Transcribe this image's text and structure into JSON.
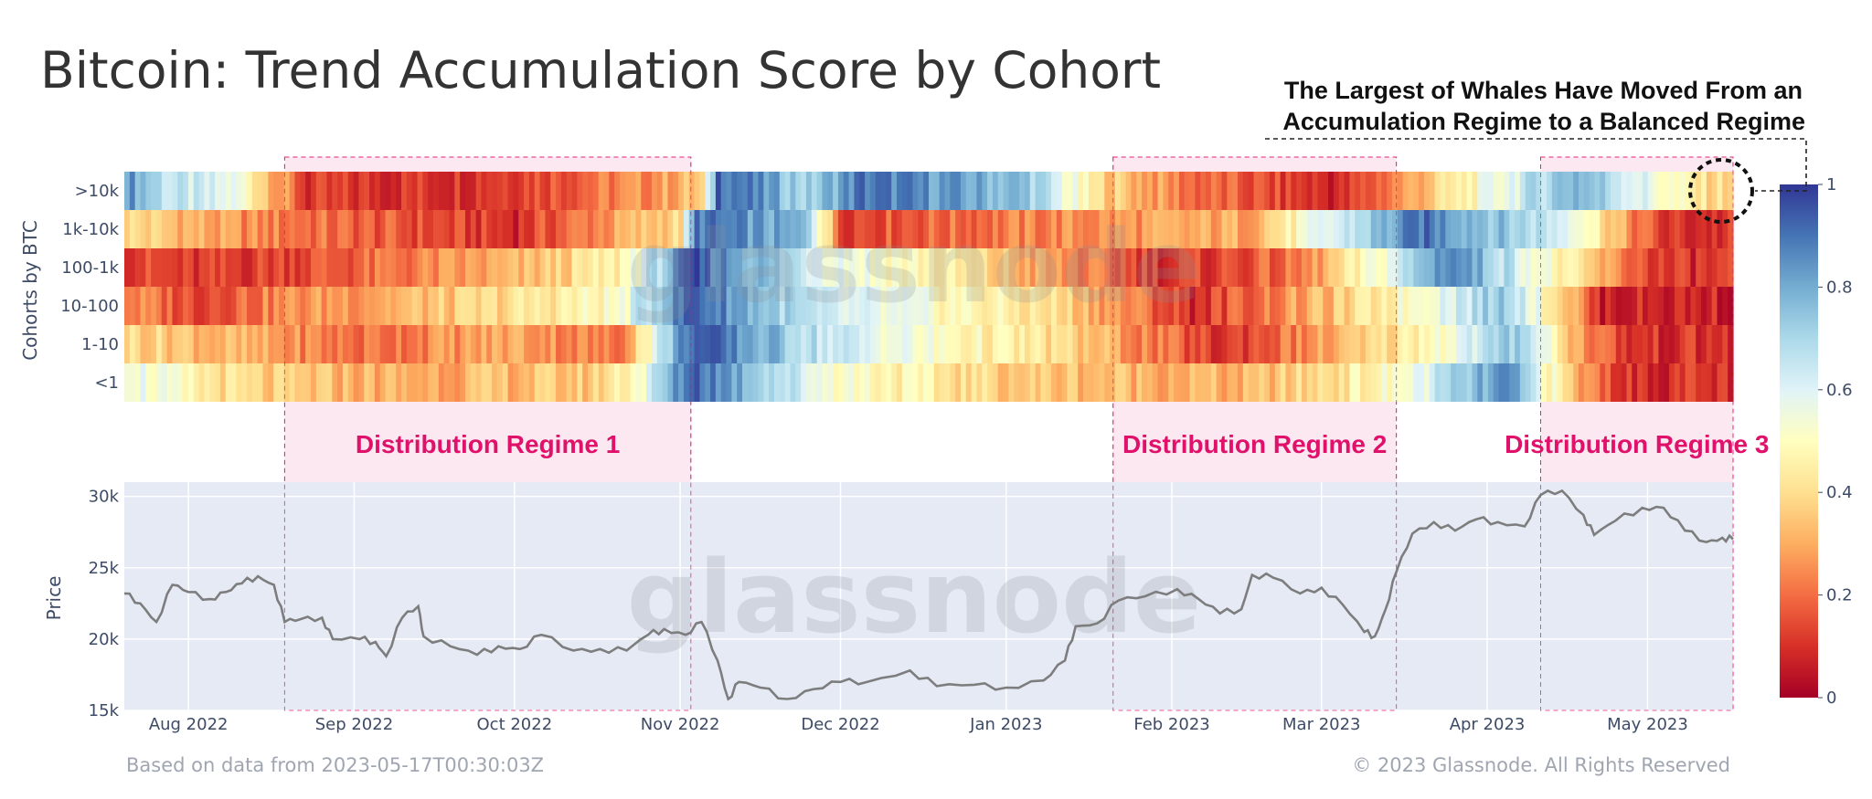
{
  "title": "Bitcoin: Trend Accumulation Score by Cohort",
  "annotation": {
    "line1": "The Largest of Whales Have Moved From an",
    "line2": "Accumulation Regime to a Balanced Regime"
  },
  "watermark": "glassnode",
  "footer": {
    "left": "Based on data from 2023-05-17T00:30:03Z",
    "right": "© 2023 Glassnode. All Rights Reserved"
  },
  "colors": {
    "regime_fill": "#f7c9dc",
    "regime_text": "#e0116b",
    "price_bg": "#e5eaf5",
    "price_line": "#7d7d7d"
  },
  "chart_data": [
    {
      "type": "heatmap",
      "title": "Bitcoin: Trend Accumulation Score by Cohort",
      "ylabel": "Cohorts by BTC",
      "x_range": [
        "2022-07-20",
        "2023-05-17"
      ],
      "rows": [
        {
          "label": ">10k",
          "segments": [
            [
              "2022-07-20",
              0.85
            ],
            [
              "2022-07-28",
              0.65
            ],
            [
              "2022-08-10",
              0.55
            ],
            [
              "2022-08-23",
              0.1
            ],
            [
              "2022-09-20",
              0.12
            ],
            [
              "2022-10-10",
              0.18
            ],
            [
              "2022-10-25",
              0.25
            ],
            [
              "2022-11-05",
              0.35
            ],
            [
              "2022-11-08",
              0.95
            ],
            [
              "2022-11-25",
              0.7
            ],
            [
              "2022-12-05",
              0.9
            ],
            [
              "2023-01-05",
              0.75
            ],
            [
              "2023-01-18",
              0.4
            ],
            [
              "2023-02-05",
              0.2
            ],
            [
              "2023-03-05",
              0.08
            ],
            [
              "2023-04-18",
              0.8
            ],
            [
              "2023-05-12",
              0.4
            ]
          ]
        },
        {
          "label": "1k-10k",
          "segments": [
            [
              "2022-07-20",
              0.4
            ],
            [
              "2022-08-10",
              0.25
            ],
            [
              "2022-09-01",
              0.18
            ],
            [
              "2022-10-01",
              0.1
            ],
            [
              "2022-11-01",
              0.4
            ],
            [
              "2022-11-04",
              0.9
            ],
            [
              "2022-11-25",
              0.75
            ],
            [
              "2022-12-01",
              0.15
            ],
            [
              "2023-01-15",
              0.25
            ],
            [
              "2023-02-15",
              0.3
            ],
            [
              "2023-03-20",
              0.9
            ],
            [
              "2023-04-18",
              0.6
            ],
            [
              "2023-04-28",
              0.25
            ],
            [
              "2023-05-05",
              0.1
            ]
          ]
        },
        {
          "label": "100-1k",
          "segments": [
            [
              "2022-07-20",
              0.15
            ],
            [
              "2022-08-01",
              0.1
            ],
            [
              "2022-09-01",
              0.18
            ],
            [
              "2022-10-01",
              0.3
            ],
            [
              "2022-10-20",
              0.45
            ],
            [
              "2022-10-28",
              0.7
            ],
            [
              "2022-11-03",
              0.95
            ],
            [
              "2022-11-28",
              0.6
            ],
            [
              "2022-12-20",
              0.45
            ],
            [
              "2023-01-05",
              0.3
            ],
            [
              "2023-02-01",
              0.1
            ],
            [
              "2023-02-25",
              0.2
            ],
            [
              "2023-03-15",
              0.6
            ],
            [
              "2023-03-25",
              0.9
            ],
            [
              "2023-04-18",
              0.4
            ],
            [
              "2023-04-25",
              0.25
            ],
            [
              "2023-05-05",
              0.1
            ]
          ]
        },
        {
          "label": "10-100",
          "segments": [
            [
              "2022-07-20",
              0.25
            ],
            [
              "2022-08-01",
              0.15
            ],
            [
              "2022-08-20",
              0.25
            ],
            [
              "2022-09-20",
              0.35
            ],
            [
              "2022-10-20",
              0.5
            ],
            [
              "2022-11-03",
              0.95
            ],
            [
              "2022-11-28",
              0.6
            ],
            [
              "2022-12-20",
              0.5
            ],
            [
              "2023-01-10",
              0.4
            ],
            [
              "2023-02-05",
              0.1
            ],
            [
              "2023-03-05",
              0.35
            ],
            [
              "2023-03-20",
              0.55
            ],
            [
              "2023-04-05",
              0.75
            ],
            [
              "2023-04-18",
              0.3
            ],
            [
              "2023-04-22",
              0.08
            ]
          ]
        },
        {
          "label": "1-10",
          "segments": [
            [
              "2022-07-20",
              0.4
            ],
            [
              "2022-08-10",
              0.3
            ],
            [
              "2022-09-01",
              0.2
            ],
            [
              "2022-10-01",
              0.3
            ],
            [
              "2022-10-20",
              0.2
            ],
            [
              "2022-11-03",
              0.95
            ],
            [
              "2022-11-28",
              0.65
            ],
            [
              "2022-12-20",
              0.5
            ],
            [
              "2023-01-10",
              0.4
            ],
            [
              "2023-02-10",
              0.1
            ],
            [
              "2023-03-10",
              0.35
            ],
            [
              "2023-03-25",
              0.55
            ],
            [
              "2023-04-08",
              0.75
            ],
            [
              "2023-04-18",
              0.3
            ],
            [
              "2023-04-28",
              0.1
            ]
          ]
        },
        {
          "label": "<1",
          "segments": [
            [
              "2022-07-20",
              0.6
            ],
            [
              "2022-08-01",
              0.45
            ],
            [
              "2022-08-15",
              0.35
            ],
            [
              "2022-09-10",
              0.3
            ],
            [
              "2022-10-15",
              0.35
            ],
            [
              "2022-10-25",
              0.55
            ],
            [
              "2022-11-03",
              0.95
            ],
            [
              "2022-11-28",
              0.55
            ],
            [
              "2022-12-20",
              0.42
            ],
            [
              "2023-01-05",
              0.35
            ],
            [
              "2023-02-15",
              0.3
            ],
            [
              "2023-03-15",
              0.5
            ],
            [
              "2023-04-05",
              0.85
            ],
            [
              "2023-04-18",
              0.3
            ],
            [
              "2023-04-28",
              0.1
            ]
          ]
        }
      ],
      "colorbar": {
        "min": 0,
        "max": 1,
        "ticks": [
          "1",
          "0.8",
          "0.6",
          "0.4",
          "0.2",
          "0"
        ],
        "colors": [
          "#a50026",
          "#d73027",
          "#f46d43",
          "#fdae61",
          "#fee090",
          "#ffffbf",
          "#e0f3f8",
          "#abd9e9",
          "#74add1",
          "#4575b4",
          "#313695"
        ]
      }
    },
    {
      "type": "line",
      "ylabel": "Price",
      "ylim": [
        15000,
        31000
      ],
      "y_ticks": [
        {
          "value": 15000,
          "label": "15k"
        },
        {
          "value": 20000,
          "label": "20k"
        },
        {
          "value": 25000,
          "label": "25k"
        },
        {
          "value": 30000,
          "label": "30k"
        }
      ],
      "x_ticks": [
        {
          "date": "2022-08-01",
          "label": "Aug 2022"
        },
        {
          "date": "2022-09-01",
          "label": "Sep 2022"
        },
        {
          "date": "2022-10-01",
          "label": "Oct 2022"
        },
        {
          "date": "2022-11-01",
          "label": "Nov 2022"
        },
        {
          "date": "2022-12-01",
          "label": "Dec 2022"
        },
        {
          "date": "2023-01-01",
          "label": "Jan 2023"
        },
        {
          "date": "2023-02-01",
          "label": "Feb 2023"
        },
        {
          "date": "2023-03-01",
          "label": "Mar 2023"
        },
        {
          "date": "2023-04-01",
          "label": "Apr 2023"
        },
        {
          "date": "2023-05-01",
          "label": "May 2023"
        }
      ],
      "x_range": [
        "2022-07-20",
        "2023-05-17"
      ],
      "series": [
        {
          "points": [
            [
              "2022-07-20",
              23200
            ],
            [
              "2022-07-23",
              22500
            ],
            [
              "2022-07-26",
              21200
            ],
            [
              "2022-07-29",
              23800
            ],
            [
              "2022-08-01",
              23300
            ],
            [
              "2022-08-05",
              22800
            ],
            [
              "2022-08-08",
              23300
            ],
            [
              "2022-08-11",
              23900
            ],
            [
              "2022-08-14",
              24400
            ],
            [
              "2022-08-17",
              23800
            ],
            [
              "2022-08-19",
              21200
            ],
            [
              "2022-08-22",
              21400
            ],
            [
              "2022-08-26",
              21500
            ],
            [
              "2022-08-28",
              20000
            ],
            [
              "2022-09-02",
              20000
            ],
            [
              "2022-09-05",
              19800
            ],
            [
              "2022-09-07",
              18800
            ],
            [
              "2022-09-10",
              21500
            ],
            [
              "2022-09-13",
              22300
            ],
            [
              "2022-09-14",
              20200
            ],
            [
              "2022-09-19",
              19500
            ],
            [
              "2022-09-24",
              18900
            ],
            [
              "2022-09-28",
              19500
            ],
            [
              "2022-10-02",
              19300
            ],
            [
              "2022-10-06",
              20300
            ],
            [
              "2022-10-12",
              19200
            ],
            [
              "2022-10-17",
              19300
            ],
            [
              "2022-10-22",
              19200
            ],
            [
              "2022-10-26",
              20300
            ],
            [
              "2022-10-29",
              20700
            ],
            [
              "2022-11-02",
              20300
            ],
            [
              "2022-11-05",
              21200
            ],
            [
              "2022-11-08",
              18500
            ],
            [
              "2022-11-10",
              15800
            ],
            [
              "2022-11-12",
              17000
            ],
            [
              "2022-11-16",
              16600
            ],
            [
              "2022-11-21",
              15800
            ],
            [
              "2022-11-26",
              16500
            ],
            [
              "2022-12-01",
              17000
            ],
            [
              "2022-12-06",
              17000
            ],
            [
              "2022-12-14",
              17800
            ],
            [
              "2022-12-19",
              16700
            ],
            [
              "2022-12-26",
              16800
            ],
            [
              "2023-01-01",
              16600
            ],
            [
              "2023-01-08",
              17100
            ],
            [
              "2023-01-12",
              18500
            ],
            [
              "2023-01-14",
              20900
            ],
            [
              "2023-01-18",
              21100
            ],
            [
              "2023-01-22",
              22700
            ],
            [
              "2023-01-27",
              23000
            ],
            [
              "2023-02-02",
              23500
            ],
            [
              "2023-02-06",
              22800
            ],
            [
              "2023-02-10",
              21800
            ],
            [
              "2023-02-14",
              22100
            ],
            [
              "2023-02-16",
              24500
            ],
            [
              "2023-02-20",
              24300
            ],
            [
              "2023-02-25",
              23200
            ],
            [
              "2023-03-01",
              23600
            ],
            [
              "2023-03-05",
              22400
            ],
            [
              "2023-03-09",
              20500
            ],
            [
              "2023-03-11",
              20200
            ],
            [
              "2023-03-13",
              22100
            ],
            [
              "2023-03-15",
              24700
            ],
            [
              "2023-03-18",
              27400
            ],
            [
              "2023-03-22",
              28200
            ],
            [
              "2023-03-26",
              27600
            ],
            [
              "2023-03-30",
              28400
            ],
            [
              "2023-04-03",
              28200
            ],
            [
              "2023-04-08",
              27900
            ],
            [
              "2023-04-11",
              30100
            ],
            [
              "2023-04-15",
              30400
            ],
            [
              "2023-04-19",
              28700
            ],
            [
              "2023-04-21",
              27300
            ],
            [
              "2023-04-25",
              28300
            ],
            [
              "2023-04-30",
              29200
            ],
            [
              "2023-05-04",
              29200
            ],
            [
              "2023-05-08",
              27600
            ],
            [
              "2023-05-12",
              26800
            ],
            [
              "2023-05-15",
              27100
            ],
            [
              "2023-05-17",
              27000
            ]
          ]
        }
      ]
    }
  ],
  "regimes": [
    {
      "label": "Distribution Regime 1",
      "start": "2022-08-19",
      "end": "2022-11-03"
    },
    {
      "label": "Distribution Regime 2",
      "start": "2023-01-21",
      "end": "2023-03-15"
    },
    {
      "label": "Distribution Regime 3",
      "start": "2023-04-11",
      "end": "2023-05-17"
    }
  ]
}
